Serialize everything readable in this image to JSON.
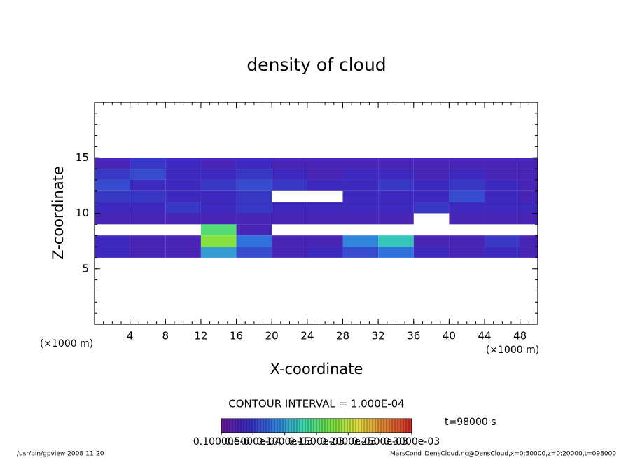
{
  "chart_data": {
    "type": "heatmap",
    "title": "density of cloud",
    "xlabel": "X-coordinate",
    "ylabel": "Z-coordinate",
    "x_unit": "(×1000 m)",
    "y_unit": "(×1000 m)",
    "xlim": [
      0,
      50
    ],
    "ylim": [
      0,
      20
    ],
    "xticks": [
      4,
      8,
      12,
      16,
      20,
      24,
      28,
      32,
      36,
      40,
      44,
      48
    ],
    "yticks": [
      5,
      10,
      15
    ],
    "x": [
      2,
      6,
      10,
      14,
      18,
      22,
      26,
      30,
      34,
      38,
      42,
      46,
      50
    ],
    "z": [
      6.5,
      7.5,
      8.5,
      9.5,
      10.5,
      11.5,
      12.5,
      13.5,
      14.5
    ],
    "values": [
      [
        4e-05,
        3e-05,
        3e-05,
        0.0001,
        6e-05,
        3e-05,
        4e-05,
        6e-05,
        8e-05,
        4e-05,
        3e-05,
        4e-05,
        3e-05
      ],
      [
        4e-05,
        3e-05,
        3e-05,
        0.00018,
        8e-05,
        3e-05,
        3e-05,
        9e-05,
        0.00012,
        3e-05,
        3e-05,
        5e-05,
        3e-05
      ],
      [
        null,
        null,
        null,
        0.00015,
        3e-05,
        null,
        null,
        null,
        null,
        null,
        null,
        null,
        null
      ],
      [
        3e-05,
        3e-05,
        3e-05,
        3e-05,
        3e-05,
        3e-05,
        3e-05,
        3e-05,
        3e-05,
        null,
        3e-05,
        3e-05,
        3e-05
      ],
      [
        4e-05,
        4e-05,
        5e-05,
        4e-05,
        5e-05,
        4e-05,
        4e-05,
        4e-05,
        4e-05,
        5e-05,
        4e-05,
        4e-05,
        4e-05
      ],
      [
        5e-05,
        5e-05,
        4e-05,
        4e-05,
        5e-05,
        null,
        null,
        4e-05,
        4e-05,
        4e-05,
        6e-05,
        4e-05,
        3e-05
      ],
      [
        6e-05,
        4e-05,
        4e-05,
        5e-05,
        6e-05,
        5e-05,
        4e-05,
        4e-05,
        5e-05,
        4e-05,
        5e-05,
        4e-05,
        3e-05
      ],
      [
        5e-05,
        6e-05,
        4e-05,
        4e-05,
        5e-05,
        4e-05,
        3e-05,
        4e-05,
        4e-05,
        3e-05,
        4e-05,
        3e-05,
        3e-05
      ],
      [
        3e-05,
        5e-05,
        4e-05,
        3e-05,
        4e-05,
        3e-05,
        3e-05,
        3e-05,
        3e-05,
        3e-05,
        3e-05,
        3e-05,
        3e-05
      ]
    ],
    "colors": [
      "#6a1a9a",
      "#3a2ac0",
      "#2f7de0",
      "#38d8b0",
      "#70e040",
      "#e0e040",
      "#e08030",
      "#d02828"
    ],
    "clim": [
      0,
      0.0003
    ],
    "cticks": [
      {
        "value": 1e-07,
        "label": "0.10000e-6"
      },
      {
        "value": 5e-05,
        "label": "0.5000e-04"
      },
      {
        "value": 0.0001,
        "label": "0.1000e-03"
      },
      {
        "value": 0.00015,
        "label": "0.1500e-03"
      },
      {
        "value": 0.0002,
        "label": "0.2000e-03"
      },
      {
        "value": 0.00025,
        "label": "0.2500e-03"
      },
      {
        "value": 0.0003,
        "label": "0.3000e-03"
      }
    ],
    "contour_note": "CONTOUR INTERVAL = 1.000E-04",
    "time_label": "t=98000 s",
    "footer_left": "/usr/bin/gpview  2008-11-20",
    "footer_right": "MarsCond_DensCloud.nc@DensCloud,x=0:50000,z=0:20000,t=098000"
  }
}
